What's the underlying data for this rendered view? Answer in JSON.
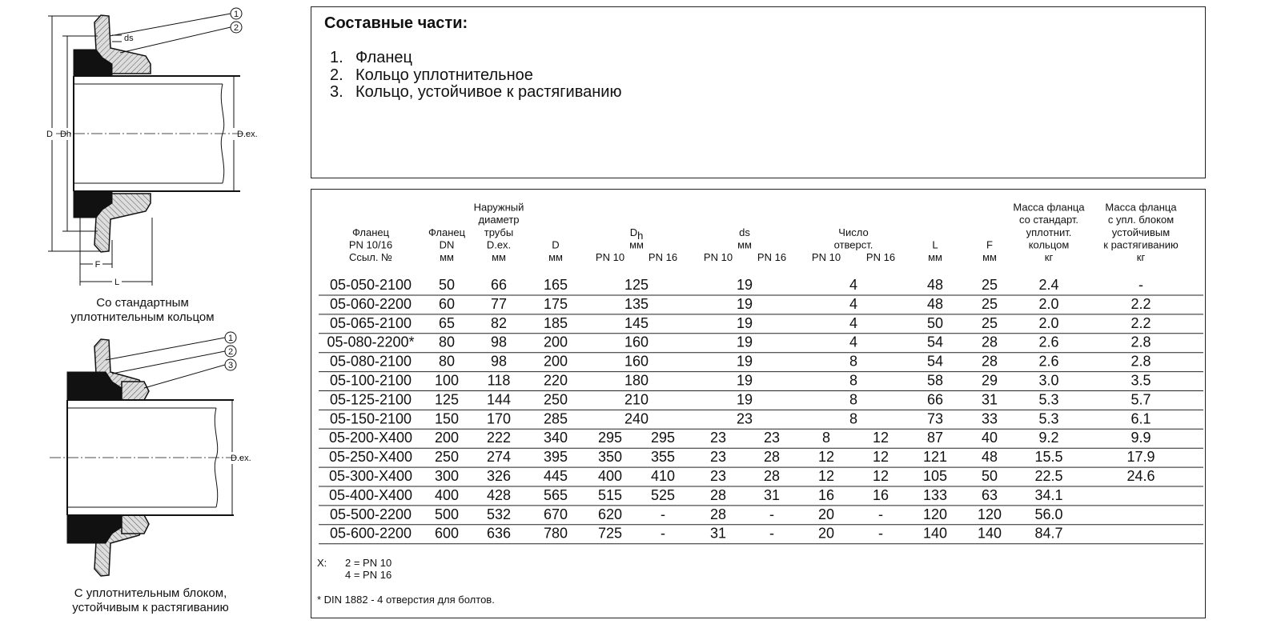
{
  "figures": [
    {
      "labels": {
        "d": "D",
        "dh": "Dh",
        "dex": "D.ex.",
        "ds": "ds",
        "f": "F",
        "l": "L"
      },
      "callouts": [
        "1",
        "2"
      ],
      "caption": [
        "Со стандартным",
        "уплотнительным кольцом"
      ]
    },
    {
      "labels": {
        "dex": "D.ex."
      },
      "callouts": [
        "1",
        "2",
        "3"
      ],
      "caption": [
        "С уплотнительным блоком,",
        "устойчивым к растягиванию"
      ]
    }
  ],
  "parts": {
    "title": "Составные части:",
    "items": [
      {
        "num": "1.",
        "text": "Фланец"
      },
      {
        "num": "2.",
        "text": "Кольцо уплотнительное"
      },
      {
        "num": "3.",
        "text": "Кольцо, устойчивое к растягиванию"
      }
    ]
  },
  "table": {
    "headers": [
      {
        "lines": [
          "Фланец",
          "PN 10/16",
          "Ссыл. №"
        ]
      },
      {
        "lines": [
          "Фланец",
          "DN",
          "мм"
        ]
      },
      {
        "lines": [
          "Наружный",
          "диаметр",
          "трубы",
          "D.ex.",
          "мм"
        ]
      },
      {
        "lines": [
          "D",
          "мм"
        ]
      },
      {
        "symbol": "D",
        "sub": "h",
        "lines": [
          "мм"
        ],
        "sub_columns": [
          "PN 10",
          "PN 16"
        ]
      },
      {
        "lines": [
          "ds",
          "мм"
        ],
        "sub_columns": [
          "PN 10",
          "PN 16"
        ]
      },
      {
        "lines": [
          "Число",
          "отверст."
        ],
        "sub_columns": [
          "PN 10",
          "PN 16"
        ]
      },
      {
        "lines": [
          "L",
          "мм"
        ]
      },
      {
        "lines": [
          "F",
          "мм"
        ]
      },
      {
        "lines": [
          "Масса фланца",
          "со стандарт.",
          "уплотнит.",
          "кольцом",
          "кг"
        ]
      },
      {
        "lines": [
          "Масса фланца",
          "с упл. блоком",
          "устойчивым",
          "к растягиванию",
          "кг"
        ]
      }
    ],
    "rows": [
      [
        "05-050-2100",
        "50",
        "66",
        "165",
        [
          "125"
        ],
        [
          "19"
        ],
        [
          "4"
        ],
        "48",
        "25",
        "2.4",
        "-"
      ],
      [
        "05-060-2200",
        "60",
        "77",
        "175",
        [
          "135"
        ],
        [
          "19"
        ],
        [
          "4"
        ],
        "48",
        "25",
        "2.0",
        "2.2"
      ],
      [
        "05-065-2100",
        "65",
        "82",
        "185",
        [
          "145"
        ],
        [
          "19"
        ],
        [
          "4"
        ],
        "50",
        "25",
        "2.0",
        "2.2"
      ],
      [
        "05-080-2200*",
        "80",
        "98",
        "200",
        [
          "160"
        ],
        [
          "19"
        ],
        [
          "4"
        ],
        "54",
        "28",
        "2.6",
        "2.8"
      ],
      [
        "05-080-2100",
        "80",
        "98",
        "200",
        [
          "160"
        ],
        [
          "19"
        ],
        [
          "8"
        ],
        "54",
        "28",
        "2.6",
        "2.8"
      ],
      [
        "05-100-2100",
        "100",
        "118",
        "220",
        [
          "180"
        ],
        [
          "19"
        ],
        [
          "8"
        ],
        "58",
        "29",
        "3.0",
        "3.5"
      ],
      [
        "05-125-2100",
        "125",
        "144",
        "250",
        [
          "210"
        ],
        [
          "19"
        ],
        [
          "8"
        ],
        "66",
        "31",
        "5.3",
        "5.7"
      ],
      [
        "05-150-2100",
        "150",
        "170",
        "285",
        [
          "240"
        ],
        [
          "23"
        ],
        [
          "8"
        ],
        "73",
        "33",
        "5.3",
        "6.1"
      ],
      [
        "05-200-X400",
        "200",
        "222",
        "340",
        [
          "295",
          "295"
        ],
        [
          "23",
          "23"
        ],
        [
          "8",
          "12"
        ],
        "87",
        "40",
        "9.2",
        "9.9"
      ],
      [
        "05-250-X400",
        "250",
        "274",
        "395",
        [
          "350",
          "355"
        ],
        [
          "23",
          "28"
        ],
        [
          "12",
          "12"
        ],
        "121",
        "48",
        "15.5",
        "17.9"
      ],
      [
        "05-300-X400",
        "300",
        "326",
        "445",
        [
          "400",
          "410"
        ],
        [
          "23",
          "28"
        ],
        [
          "12",
          "12"
        ],
        "105",
        "50",
        "22.5",
        "24.6"
      ],
      [
        "05-400-X400",
        "400",
        "428",
        "565",
        [
          "515",
          "525"
        ],
        [
          "28",
          "31"
        ],
        [
          "16",
          "16"
        ],
        "133",
        "63",
        "34.1"
      ],
      [
        "05-500-2200",
        "500",
        "532",
        "670",
        [
          "620",
          "-"
        ],
        [
          "28",
          "-"
        ],
        [
          "20",
          "-"
        ],
        "120",
        "120",
        "56.0"
      ],
      [
        "05-600-2200",
        "600",
        "636",
        "780",
        [
          "725",
          "-"
        ],
        [
          "31",
          "-"
        ],
        [
          "20",
          "-"
        ],
        "140",
        "140",
        "84.7"
      ]
    ],
    "notes": {
      "x_label": "X:",
      "x_values": [
        "2 = PN 10",
        "4 = PN 16"
      ],
      "footnote": "* DIN 1882 - 4 отверстия для болтов."
    }
  }
}
